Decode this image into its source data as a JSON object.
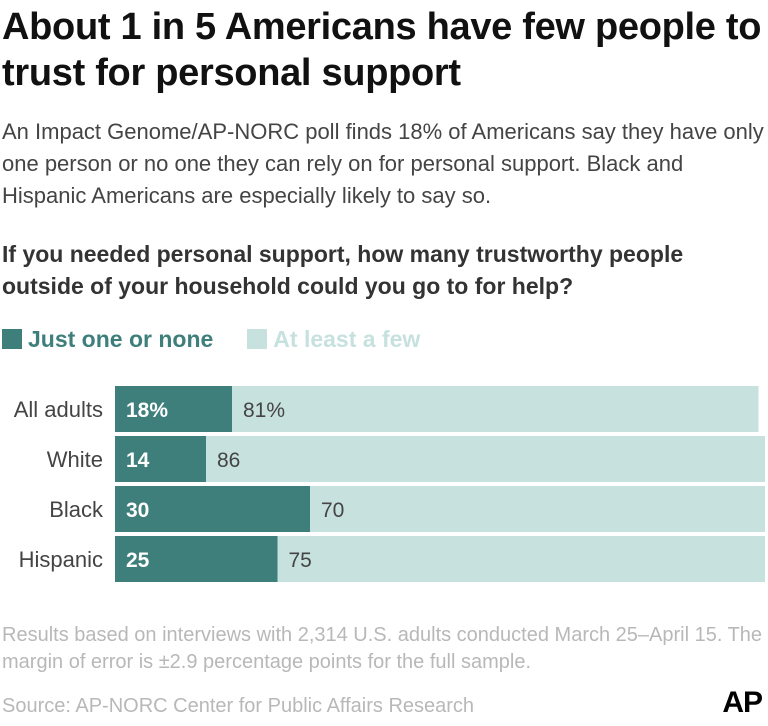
{
  "title": "About 1 in 5 Americans have few people to trust for personal support",
  "subtitle": "An Impact Genome/AP-NORC poll finds 18% of Americans say they have only one person or no one they can rely on for personal support. Black and Hispanic Americans are especially likely to say so.",
  "question": "If you needed personal support, how many trustworthy people outside of your household could you go to for help?",
  "footnote": "Results based on interviews with 2,314 U.S. adults conducted March 25–April 15. The margin of error is ±2.9 percentage points for the full sample.",
  "source": "Source: AP-NORC Center for Public Affairs Research",
  "logo": "AP",
  "colors": {
    "dark": "#3e7f7c",
    "light": "#c7e1de",
    "label": "#444444"
  },
  "chart_data": {
    "type": "bar",
    "orientation": "horizontal",
    "stacked": true,
    "categories": [
      "All adults",
      "White",
      "Black",
      "Hispanic"
    ],
    "series": [
      {
        "name": "Just one or none",
        "values": [
          18,
          14,
          30,
          25
        ],
        "labels": [
          "18%",
          "14",
          "30",
          "25"
        ]
      },
      {
        "name": "At least a few",
        "values": [
          81,
          86,
          70,
          75
        ],
        "labels": [
          "81%",
          "86",
          "70",
          "75"
        ]
      }
    ],
    "xlim": [
      0,
      100
    ],
    "grid": false,
    "legend_position": "top-left"
  }
}
